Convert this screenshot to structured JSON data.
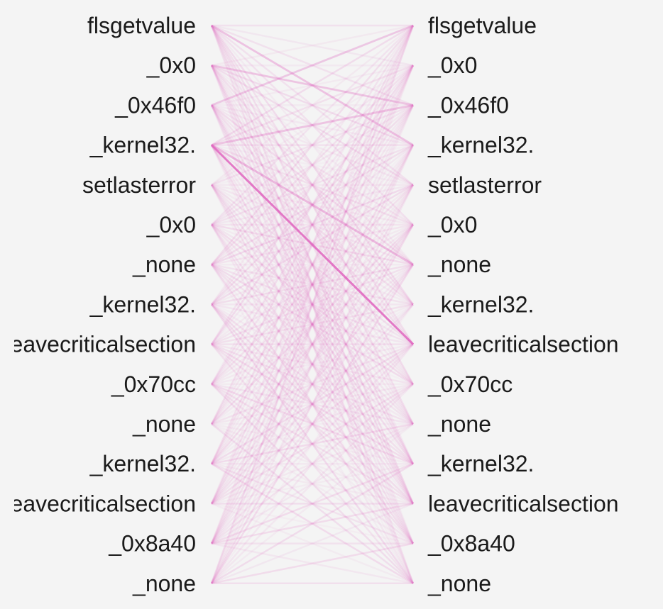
{
  "diagram": {
    "left_tokens": [
      "flsgetvalue",
      "_0x0",
      "_0x46f0",
      "_kernel32.",
      "setlasterror",
      "_0x0",
      "_none",
      "_kernel32.",
      "leavecriticalsection",
      "_0x70cc",
      "_none",
      "_kernel32.",
      "leavecriticalsection",
      "_0x8a40",
      "_none"
    ],
    "right_tokens": [
      "flsgetvalue",
      "_0x0",
      "_0x46f0",
      "_kernel32.",
      "setlasterror",
      "_0x0",
      "_none",
      "_kernel32.",
      "leavecriticalsection",
      "_0x70cc",
      "_none",
      "_kernel32.",
      "leavecriticalsection",
      "_0x8a40",
      "_none"
    ],
    "strong_links": [
      {
        "from": 3,
        "to": 8,
        "weight": 0.85
      },
      {
        "from": 3,
        "to": 6,
        "weight": 0.35
      },
      {
        "from": 3,
        "to": 2,
        "weight": 0.3
      },
      {
        "from": 0,
        "to": 3,
        "weight": 0.2
      },
      {
        "from": 1,
        "to": 2,
        "weight": 0.2
      },
      {
        "from": 2,
        "to": 0,
        "weight": 0.18
      }
    ],
    "link_color": "#e066c0",
    "background_color": "#f4f4f4",
    "text_color": "#1a1a1a"
  }
}
